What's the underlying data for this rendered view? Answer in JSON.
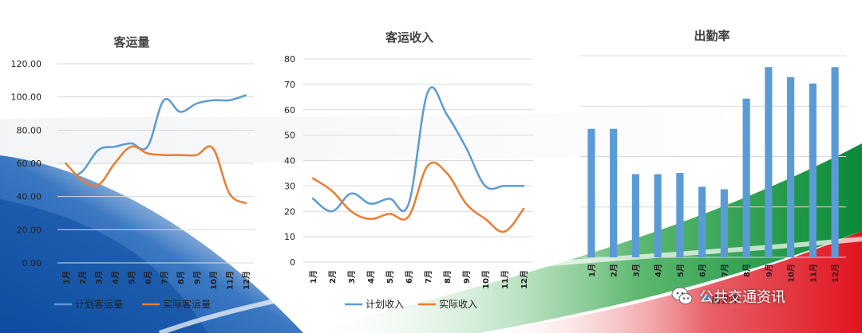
{
  "charts": [
    {
      "type": "line",
      "title": "客运量",
      "categories": [
        "1月",
        "2月",
        "3月",
        "4月",
        "5月",
        "6月",
        "7月",
        "8月",
        "9月",
        "10月",
        "11月",
        "12月"
      ],
      "yticks": [
        "0.00",
        "20.00",
        "40.00",
        "60.00",
        "80.00",
        "100.00",
        "120.00"
      ],
      "ylim": [
        0,
        120
      ],
      "legend_position": "bottom",
      "series": [
        {
          "name": "计划客运量",
          "color": "#5B9BD5",
          "values": [
            51,
            55,
            68,
            70,
            72,
            70,
            98,
            91,
            96,
            98,
            98,
            101
          ]
        },
        {
          "name": "实际客运量",
          "color": "#ED7D31",
          "values": [
            60,
            50,
            47,
            60,
            70,
            66,
            65,
            65,
            65,
            69,
            42,
            36
          ]
        }
      ]
    },
    {
      "type": "line",
      "title": "客运收入",
      "categories": [
        "1月",
        "2月",
        "3月",
        "4月",
        "5月",
        "6月",
        "7月",
        "8月",
        "9月",
        "10月",
        "11月",
        "12月"
      ],
      "yticks": [
        "0",
        "10",
        "20",
        "30",
        "40",
        "50",
        "60",
        "70",
        "80"
      ],
      "ylim": [
        0,
        80
      ],
      "legend_position": "bottom",
      "series": [
        {
          "name": "计划收入",
          "color": "#5B9BD5",
          "values": [
            25,
            20,
            27,
            23,
            25,
            23,
            67,
            58,
            45,
            30,
            30,
            30
          ]
        },
        {
          "name": "实际收入",
          "color": "#ED7D31",
          "values": [
            33,
            28,
            20,
            17,
            19,
            18,
            38,
            35,
            23,
            17,
            12,
            21
          ]
        }
      ]
    },
    {
      "type": "bar",
      "title": "出勤率",
      "categories": [
        "1月",
        "2月",
        "3月",
        "4月",
        "5月",
        "6月",
        "7月",
        "8月",
        "9月",
        "10月",
        "11月",
        "12月"
      ],
      "ylim": [
        0,
        80
      ],
      "legend_position": "bottom",
      "series": [
        {
          "name": "出勤率",
          "color": "#5B9BD5",
          "values": [
            51,
            51,
            33,
            33,
            33.5,
            28,
            27,
            63,
            75.5,
            71.5,
            69,
            75.5
          ]
        }
      ]
    }
  ],
  "watermark": {
    "text": "公共交通资讯",
    "icon": "wechat-icon"
  },
  "colors": {
    "plan": "#5B9BD5",
    "actual": "#ED7D31",
    "blue_band": "#0D4DA1",
    "green_band": "#0A8A3A",
    "red_band": "#E0141E"
  }
}
